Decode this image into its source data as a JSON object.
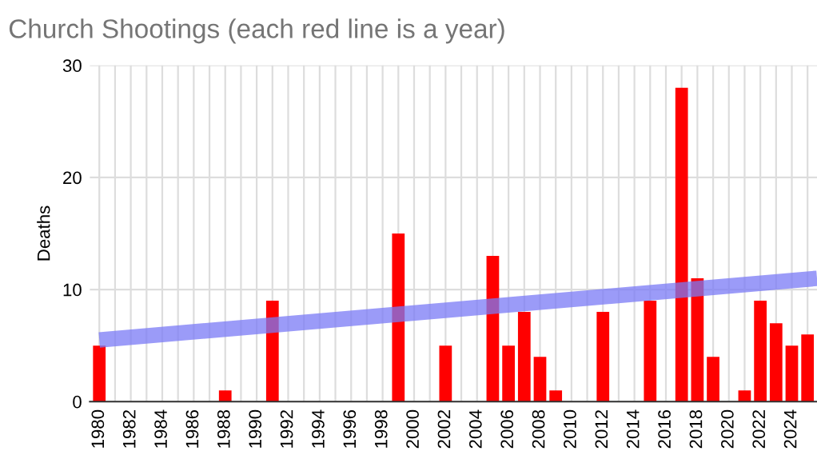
{
  "chart_data": {
    "type": "bar",
    "title": "Church Shootings (each red line is a year)",
    "ylabel": "Deaths",
    "xlim": [
      1979.4,
      2025.6
    ],
    "ylim": [
      0,
      30
    ],
    "yticks": [
      0,
      10,
      20,
      30
    ],
    "xticks": [
      1980,
      {
        "value": 1981,
        "label": null
      },
      1982,
      {
        "value": 1983,
        "label": null
      },
      1984,
      {
        "value": 1985,
        "label": null
      },
      1986,
      {
        "value": 1987,
        "label": null
      },
      1988,
      {
        "value": 1989,
        "label": null
      },
      1990,
      {
        "value": 1991,
        "label": null
      },
      1992,
      {
        "value": 1993,
        "label": null
      },
      1994,
      {
        "value": 1995,
        "label": null
      },
      1996,
      {
        "value": 1997,
        "label": null
      },
      1998,
      {
        "value": 1999,
        "label": null
      },
      2000,
      {
        "value": 2001,
        "label": null
      },
      2002,
      {
        "value": 2003,
        "label": null
      },
      2004,
      {
        "value": 2005,
        "label": null
      },
      2006,
      {
        "value": 2007,
        "label": null
      },
      2008,
      {
        "value": 2009,
        "label": null
      },
      2010,
      {
        "value": 2011,
        "label": null
      },
      2012,
      {
        "value": 2013,
        "label": null
      },
      2014,
      {
        "value": 2015,
        "label": null
      },
      2016,
      {
        "value": 2017,
        "label": null
      },
      2018,
      {
        "value": 2019,
        "label": null
      },
      2020,
      {
        "value": 2021,
        "label": null
      },
      2022,
      {
        "value": 2023,
        "label": null
      },
      2024,
      {
        "value": 2025,
        "label": null
      }
    ],
    "grid": true,
    "series": [
      {
        "color": "#ff0000",
        "x": [
          1980,
          1988,
          1991,
          1999,
          2002,
          2005,
          2006,
          2007,
          2008,
          2009,
          2012,
          2015,
          2017,
          2018,
          2019,
          2021,
          2022,
          2023,
          2024,
          2025
        ],
        "values": [
          5,
          1,
          9,
          15,
          5,
          13,
          5,
          8,
          4,
          1,
          8,
          9,
          28,
          11,
          4,
          1,
          9,
          7,
          5,
          6
        ]
      },
      {
        "type": "line",
        "color": "#7a7af5",
        "x": [
          1980,
          2025.6
        ],
        "values": [
          5.5,
          11
        ]
      }
    ]
  }
}
